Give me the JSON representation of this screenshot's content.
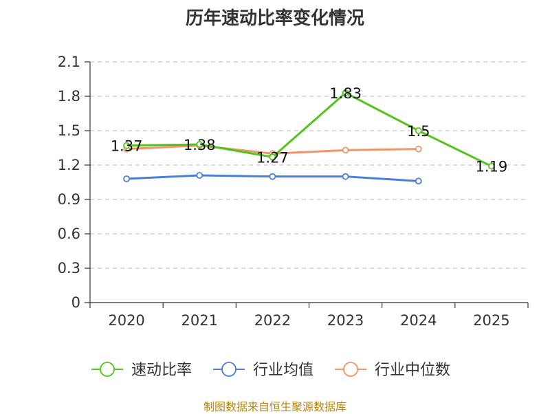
{
  "title": "历年速动比率变化情况",
  "source": "制图数据来自恒生聚源数据库",
  "chart_data": {
    "type": "line",
    "title": "历年速动比率变化情况",
    "categories": [
      "2020",
      "2021",
      "2022",
      "2023",
      "2024",
      "2025"
    ],
    "y_ticks": [
      "0",
      "0.3",
      "0.6",
      "0.9",
      "1.2",
      "1.5",
      "1.8",
      "2.1"
    ],
    "ylim": [
      0,
      2.1
    ],
    "grid": true,
    "legend_position": "bottom",
    "series": [
      {
        "name": "速动比率",
        "color": "#52c41a",
        "values": [
          1.37,
          1.38,
          1.27,
          1.83,
          1.5,
          1.19
        ],
        "labels": [
          "1.37",
          "1.38",
          "1.27",
          "1.83",
          "1.5",
          "1.19"
        ]
      },
      {
        "name": "行业均值",
        "color": "#4a7fdc",
        "values": [
          1.08,
          1.11,
          1.1,
          1.1,
          1.06,
          null
        ]
      },
      {
        "name": "行业中位数",
        "color": "#f0956a",
        "values": [
          1.34,
          1.37,
          1.3,
          1.33,
          1.34,
          null
        ]
      }
    ]
  }
}
